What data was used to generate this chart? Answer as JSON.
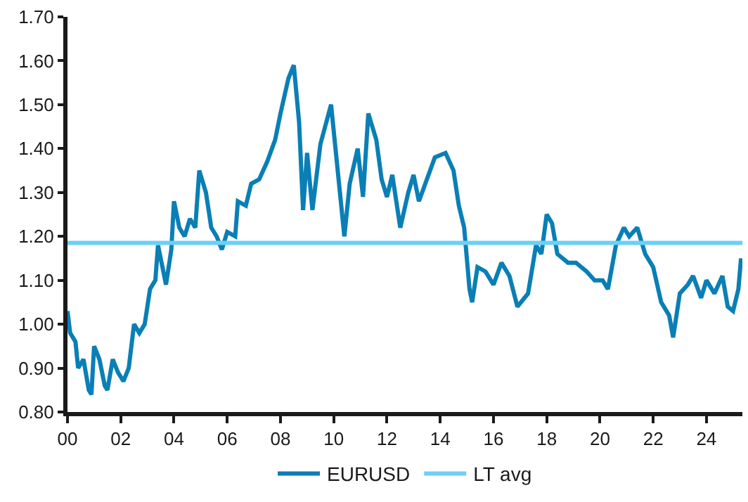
{
  "chart_data": {
    "type": "line",
    "legend": "bottom",
    "grid": false,
    "marker": "none",
    "line_style": "solid",
    "xlim": [
      2000,
      2025.35
    ],
    "xticks": [
      {
        "value": 2000,
        "label": "00"
      },
      {
        "value": 2002,
        "label": "02"
      },
      {
        "value": 2004,
        "label": "04"
      },
      {
        "value": 2006,
        "label": "06"
      },
      {
        "value": 2008,
        "label": "08"
      },
      {
        "value": 2010,
        "label": "10"
      },
      {
        "value": 2012,
        "label": "12"
      },
      {
        "value": 2014,
        "label": "14"
      },
      {
        "value": 2016,
        "label": "16"
      },
      {
        "value": 2018,
        "label": "18"
      },
      {
        "value": 2020,
        "label": "20"
      },
      {
        "value": 2022,
        "label": "22"
      },
      {
        "value": 2024,
        "label": "24"
      }
    ],
    "ylim": [
      0.8,
      1.7
    ],
    "yticks": [
      {
        "value": 0.8,
        "label": "0.80"
      },
      {
        "value": 0.9,
        "label": "0.90"
      },
      {
        "value": 1.0,
        "label": "1.00"
      },
      {
        "value": 1.1,
        "label": "1.10"
      },
      {
        "value": 1.2,
        "label": "1.20"
      },
      {
        "value": 1.3,
        "label": "1.30"
      },
      {
        "value": 1.4,
        "label": "1.40"
      },
      {
        "value": 1.5,
        "label": "1.50"
      },
      {
        "value": 1.6,
        "label": "1.60"
      },
      {
        "value": 1.7,
        "label": "1.70"
      }
    ],
    "series": [
      {
        "name": "EURUSD",
        "color": "#0a7fb5",
        "x": [
          2000.0,
          2000.1,
          2000.3,
          2000.4,
          2000.6,
          2000.8,
          2000.9,
          2001.0,
          2001.2,
          2001.4,
          2001.5,
          2001.7,
          2001.9,
          2002.0,
          2002.1,
          2002.3,
          2002.5,
          2002.7,
          2002.9,
          2003.1,
          2003.3,
          2003.4,
          2003.6,
          2003.7,
          2003.9,
          2004.0,
          2004.2,
          2004.4,
          2004.6,
          2004.8,
          2004.95,
          2005.2,
          2005.4,
          2005.6,
          2005.8,
          2006.0,
          2006.3,
          2006.4,
          2006.7,
          2006.9,
          2007.2,
          2007.5,
          2007.8,
          2008.0,
          2008.3,
          2008.5,
          2008.7,
          2008.85,
          2009.0,
          2009.2,
          2009.5,
          2009.9,
          2010.1,
          2010.4,
          2010.6,
          2010.9,
          2011.1,
          2011.3,
          2011.6,
          2011.8,
          2012.0,
          2012.2,
          2012.5,
          2012.8,
          2013.0,
          2013.2,
          2013.5,
          2013.8,
          2014.2,
          2014.5,
          2014.7,
          2014.9,
          2015.1,
          2015.2,
          2015.4,
          2015.7,
          2016.0,
          2016.3,
          2016.6,
          2016.9,
          2017.3,
          2017.6,
          2017.8,
          2018.0,
          2018.2,
          2018.4,
          2018.8,
          2019.1,
          2019.5,
          2019.8,
          2020.1,
          2020.3,
          2020.6,
          2020.9,
          2021.1,
          2021.4,
          2021.7,
          2022.0,
          2022.3,
          2022.6,
          2022.75,
          2023.0,
          2023.3,
          2023.5,
          2023.8,
          2024.0,
          2024.3,
          2024.6,
          2024.8,
          2025.0,
          2025.2,
          2025.3
        ],
        "values": [
          1.03,
          0.98,
          0.96,
          0.9,
          0.92,
          0.85,
          0.84,
          0.95,
          0.92,
          0.86,
          0.85,
          0.92,
          0.89,
          0.88,
          0.87,
          0.9,
          1.0,
          0.98,
          1.0,
          1.08,
          1.1,
          1.18,
          1.12,
          1.09,
          1.17,
          1.28,
          1.22,
          1.2,
          1.24,
          1.22,
          1.35,
          1.3,
          1.22,
          1.2,
          1.17,
          1.21,
          1.2,
          1.28,
          1.27,
          1.32,
          1.33,
          1.37,
          1.42,
          1.48,
          1.56,
          1.59,
          1.46,
          1.26,
          1.39,
          1.26,
          1.41,
          1.5,
          1.38,
          1.2,
          1.32,
          1.4,
          1.29,
          1.48,
          1.42,
          1.33,
          1.29,
          1.34,
          1.22,
          1.3,
          1.34,
          1.28,
          1.33,
          1.38,
          1.39,
          1.35,
          1.27,
          1.22,
          1.08,
          1.05,
          1.13,
          1.12,
          1.09,
          1.14,
          1.11,
          1.04,
          1.07,
          1.18,
          1.16,
          1.25,
          1.23,
          1.16,
          1.14,
          1.14,
          1.12,
          1.1,
          1.1,
          1.08,
          1.18,
          1.22,
          1.2,
          1.22,
          1.16,
          1.13,
          1.05,
          1.02,
          0.97,
          1.07,
          1.09,
          1.11,
          1.06,
          1.1,
          1.07,
          1.11,
          1.04,
          1.03,
          1.08,
          1.15
        ]
      },
      {
        "name": "LT avg",
        "color": "#6dd0f5",
        "x": [
          2000,
          2025.35
        ],
        "values": [
          1.185,
          1.185
        ]
      }
    ]
  }
}
